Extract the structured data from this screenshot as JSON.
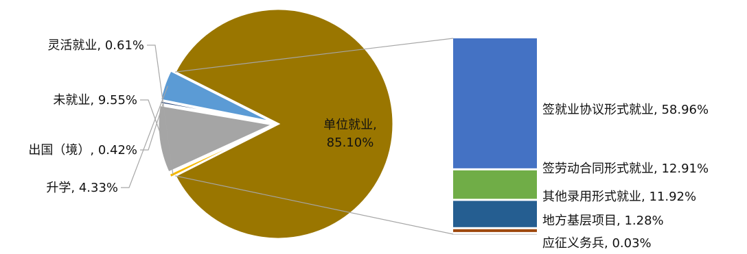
{
  "chart_data": {
    "type": "pie",
    "pie_slices": [
      {
        "name": "单位就业",
        "value": 85.1,
        "color": "#9A7600",
        "label": "单位就业,\n85.10%"
      },
      {
        "name": "灵活就业",
        "value": 0.61,
        "color": "#F5B800",
        "label": "灵活就业, 0.61%"
      },
      {
        "name": "未就业",
        "value": 9.55,
        "color": "#A5A5A5",
        "label": "未就业, 9.55%"
      },
      {
        "name": "出国（境）",
        "value": 0.42,
        "color": "#264478",
        "label": "出国（境）, 0.42%"
      },
      {
        "name": "升学",
        "value": 4.33,
        "color": "#5B9BD5",
        "label": "升学, 4.33%"
      }
    ],
    "breakdown_of": "单位就业",
    "bar_segments": [
      {
        "name": "签就业协议形式就业",
        "value": 58.96,
        "color": "#4472C4",
        "label": "签就业协议形式就业, 58.96%"
      },
      {
        "name": "签劳动合同形式就业",
        "value": 12.91,
        "color": "#70AD47",
        "label": "签劳动合同形式就业, 12.91%"
      },
      {
        "name": "其他录用形式就业",
        "value": 11.92,
        "color": "#255E91",
        "label": "其他录用形式就业, 11.92%"
      },
      {
        "name": "地方基层项目",
        "value": 1.28,
        "color": "#9E480E",
        "label": "地方基层项目, 1.28%"
      },
      {
        "name": "应征义务兵",
        "value": 0.03,
        "color": "#636363",
        "label": "应征义务兵, 0.03%"
      }
    ]
  }
}
